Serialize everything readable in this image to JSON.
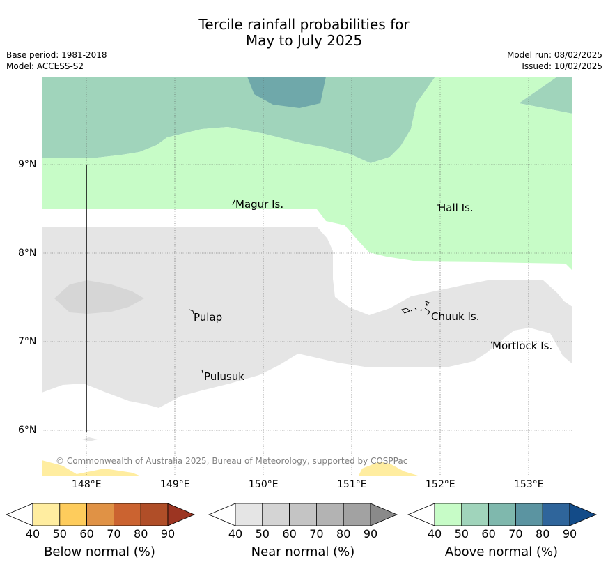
{
  "header": {
    "title_line1": "Tercile rainfall probabilities for",
    "title_line2": "May to July 2025",
    "base_period": "Base period: 1981-2018",
    "model": "Model: ACCESS-S2",
    "model_run": "Model run: 08/02/2025",
    "issued": "Issued: 10/02/2025"
  },
  "map": {
    "lat_labels": [
      "9°N",
      "8°N",
      "7°N",
      "6°N"
    ],
    "lon_labels": [
      "148°E",
      "149°E",
      "150°E",
      "151°E",
      "152°E",
      "153°E"
    ],
    "places": [
      "Magur Is.",
      "Hall Is.",
      "Pulap",
      "Chuuk Is.",
      "Mortlock Is.",
      "Pulusuk"
    ],
    "copyright": "© Commonwealth of Australia 2025, Bureau of Meteorology, supported by COSPPac"
  },
  "legend": {
    "below": {
      "label": "Below normal (%)",
      "ticks": [
        "40",
        "50",
        "60",
        "70",
        "80",
        "90"
      ],
      "colors": [
        "#ffffff",
        "#ffeda0",
        "#fecc5c",
        "#e09245",
        "#cb6330",
        "#b04e28",
        "#9c3522"
      ]
    },
    "near": {
      "label": "Near normal (%)",
      "ticks": [
        "40",
        "50",
        "60",
        "70",
        "80",
        "90"
      ],
      "colors": [
        "#ffffff",
        "#e5e5e5",
        "#d4d4d4",
        "#c4c4c4",
        "#b3b3b3",
        "#a2a2a2",
        "#8a8a8a"
      ]
    },
    "above": {
      "label": "Above normal (%)",
      "ticks": [
        "40",
        "50",
        "60",
        "70",
        "80",
        "90"
      ],
      "colors": [
        "#ffffff",
        "#c7fcc7",
        "#a0d4bb",
        "#7fb8ad",
        "#5b94a1",
        "#2f659b",
        "#134b88"
      ]
    }
  }
}
